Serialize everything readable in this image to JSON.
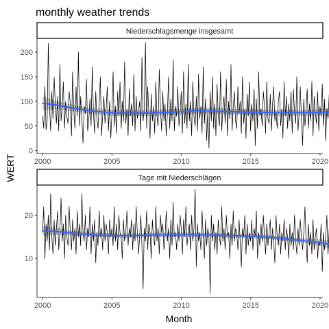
{
  "chart_data": {
    "type": "line",
    "title": "monthly weather trends",
    "xlabel": "Month",
    "ylabel": "WERT",
    "xlim": [
      1999.6,
      2020.2
    ],
    "x_ticks": [
      "2000",
      "2005",
      "2010",
      "2015",
      "2020"
    ],
    "grid": false,
    "legend": "none",
    "colors": {
      "raw": "#000000",
      "smooth": "#3366ff",
      "band": "#bebebe",
      "strip_fill": "#ffffff",
      "axis": "#333333"
    },
    "x_start": 2000.0,
    "x_step": 0.0833,
    "panels": [
      {
        "strip": "Niederschlagsmenge insgesamt",
        "ylim": [
          -6,
          228
        ],
        "y_ticks": [
          "0",
          "50",
          "100",
          "150",
          "200"
        ],
        "monthly_values": [
          70,
          45,
          130,
          42,
          60,
          218,
          90,
          40,
          120,
          65,
          150,
          95,
          55,
          110,
          40,
          175,
          60,
          90,
          140,
          45,
          100,
          70,
          55,
          120,
          95,
          30,
          160,
          85,
          45,
          130,
          70,
          200,
          50,
          110,
          65,
          15,
          90,
          75,
          145,
          40,
          60,
          105,
          50,
          170,
          80,
          35,
          120,
          65,
          45,
          95,
          150,
          30,
          70,
          110,
          55,
          85,
          130,
          40,
          100,
          25,
          75,
          160,
          50,
          90,
          35,
          120,
          70,
          140,
          45,
          100,
          60,
          180,
          55,
          85,
          30,
          125,
          70,
          95,
          50,
          155,
          40,
          110,
          65,
          80,
          100,
          40,
          190,
          60,
          85,
          220,
          45,
          130,
          75,
          25,
          115,
          60,
          90,
          35,
          140,
          70,
          50,
          165,
          85,
          40,
          120,
          60,
          95,
          30,
          75,
          150,
          45,
          105,
          60,
          185,
          40,
          90,
          70,
          130,
          50,
          80,
          120,
          35,
          160,
          55,
          95,
          45,
          175,
          60,
          100,
          30,
          140,
          70,
          50,
          110,
          40,
          155,
          65,
          90,
          35,
          170,
          55,
          105,
          20,
          80,
          5,
          120,
          60,
          150,
          45,
          95,
          30,
          135,
          70,
          50,
          160,
          40,
          85,
          110,
          55,
          145,
          30,
          100,
          65,
          175,
          40,
          90,
          120,
          60,
          45,
          130,
          75,
          100,
          35,
          150,
          55,
          85,
          25,
          115,
          70,
          140,
          40,
          95,
          60,
          125,
          10,
          105,
          45,
          160,
          70,
          85,
          50,
          120,
          90,
          35,
          140,
          65,
          55,
          115,
          40,
          95,
          130,
          60,
          80,
          45,
          100,
          120,
          50,
          85,
          25,
          140,
          70,
          110,
          45,
          95,
          60,
          120,
          35,
          125,
          80,
          55,
          150,
          40,
          75,
          130,
          65,
          10,
          105,
          50,
          85,
          125,
          45,
          95,
          60,
          140,
          30,
          110,
          75,
          55,
          120,
          40,
          90,
          70,
          135,
          50,
          105,
          20,
          85,
          65,
          115,
          45,
          90,
          195,
          75,
          60
        ],
        "smooth_values": [
          96,
          93,
          88,
          84,
          80,
          78,
          76,
          76,
          76,
          77,
          78,
          79,
          81,
          81,
          80,
          79,
          78,
          78,
          77,
          77,
          77,
          77,
          78,
          78
        ],
        "band_halfwidth": [
          14,
          9,
          7,
          6,
          6,
          6,
          6,
          6,
          6,
          6,
          6,
          6,
          6,
          6,
          6,
          6,
          6,
          6,
          6,
          6,
          6,
          6,
          7,
          11
        ]
      },
      {
        "strip": "Tage mit Niederschlägen",
        "ylim": [
          1,
          27
        ],
        "y_ticks": [
          "10",
          "20"
        ],
        "monthly_values": [
          16,
          22,
          10,
          18,
          14,
          20,
          12,
          25,
          15,
          11,
          19,
          13,
          17,
          21,
          12,
          16,
          24,
          14,
          18,
          10,
          20,
          15,
          13,
          22,
          16,
          12,
          19,
          14,
          17,
          11,
          21,
          15,
          18,
          13,
          25,
          16,
          14,
          20,
          12,
          17,
          15,
          22,
          11,
          18,
          14,
          19,
          9,
          16,
          13,
          21,
          15,
          17,
          12,
          20,
          14,
          18,
          16,
          11,
          19,
          15,
          17,
          13,
          22,
          14,
          18,
          12,
          20,
          16,
          15,
          10,
          19,
          14,
          16,
          21,
          13,
          17,
          15,
          19,
          12,
          18,
          14,
          22,
          16,
          11,
          15,
          20,
          13,
          3,
          17,
          14,
          21,
          12,
          18,
          16,
          10,
          19,
          15,
          13,
          22,
          14,
          17,
          11,
          20,
          16,
          18,
          12,
          15,
          21,
          14,
          17,
          10,
          19,
          13,
          23,
          15,
          16,
          12,
          18,
          14,
          20,
          17,
          11,
          19,
          15,
          22,
          13,
          16,
          18,
          12,
          20,
          14,
          17,
          26,
          8,
          18,
          14,
          16,
          12,
          21,
          15,
          10,
          19,
          13,
          17,
          15,
          2,
          20,
          14,
          18,
          12,
          16,
          11,
          19,
          15,
          13,
          22,
          14,
          17,
          12,
          20,
          15,
          16,
          10,
          18,
          13,
          21,
          14,
          17,
          16,
          12,
          19,
          14,
          8,
          17,
          15,
          20,
          11,
          18,
          13,
          16,
          14,
          19,
          12,
          17,
          15,
          21,
          10,
          16,
          13,
          18,
          14,
          20,
          15,
          11,
          18,
          13,
          16,
          19,
          12,
          17,
          14,
          9,
          20,
          15,
          13,
          18,
          11,
          16,
          14,
          19,
          12,
          17,
          15,
          10,
          18,
          13,
          16,
          12,
          20,
          14,
          11,
          17,
          13,
          19,
          15,
          12,
          16,
          22,
          14,
          9,
          18,
          13,
          16,
          11,
          19,
          12,
          15,
          17,
          10,
          14,
          13,
          18,
          7,
          16,
          12,
          15,
          20,
          11,
          17,
          14,
          6,
          19,
          13,
          10
        ],
        "smooth_values": [
          16.4,
          16.3,
          16.0,
          15.7,
          15.5,
          15.4,
          15.3,
          15.3,
          15.4,
          15.5,
          15.5,
          15.5,
          15.5,
          15.5,
          15.4,
          15.3,
          15.2,
          15.1,
          14.9,
          14.6,
          14.3,
          14.0,
          13.6,
          13.1
        ],
        "band_halfwidth": [
          1.2,
          0.8,
          0.6,
          0.5,
          0.5,
          0.5,
          0.5,
          0.5,
          0.5,
          0.5,
          0.5,
          0.5,
          0.5,
          0.5,
          0.5,
          0.5,
          0.5,
          0.5,
          0.5,
          0.5,
          0.5,
          0.6,
          0.8,
          1.1
        ]
      }
    ]
  }
}
